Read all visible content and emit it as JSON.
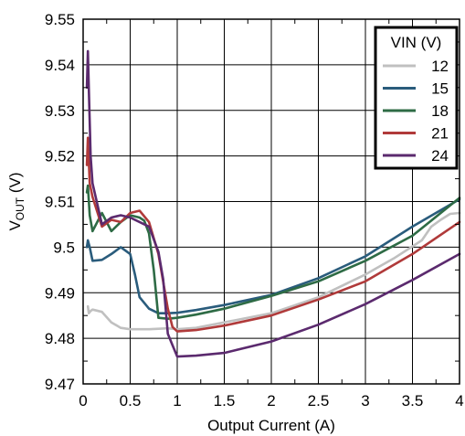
{
  "chart_data": {
    "type": "line",
    "xlabel": "Output Current (A)",
    "ylabel": {
      "main": "V",
      "sub": "OUT",
      "unit": " (V)"
    },
    "xlim": [
      0,
      4
    ],
    "ylim": [
      9.47,
      9.55
    ],
    "x_ticks": [
      0,
      0.5,
      1,
      1.5,
      2,
      2.5,
      3,
      3.5,
      4
    ],
    "x_tick_labels": [
      "0",
      "0.5",
      "1",
      "1.5",
      "2",
      "2.5",
      "3",
      "3.5",
      "4"
    ],
    "y_ticks": [
      9.47,
      9.48,
      9.49,
      9.5,
      9.51,
      9.52,
      9.53,
      9.54,
      9.55
    ],
    "y_tick_labels": [
      "9.47",
      "9.48",
      "9.49",
      "9.5",
      "9.51",
      "9.52",
      "9.53",
      "9.54",
      "9.55"
    ],
    "x_minor_ticks": [
      0.25,
      0.75,
      1.25,
      1.75,
      2.25,
      2.75,
      3.25,
      3.75
    ],
    "y_minor_ticks": [
      9.475,
      9.485,
      9.495,
      9.505,
      9.515,
      9.525,
      9.535,
      9.545
    ],
    "grid": true,
    "legend": {
      "title": "VIN (V)",
      "placement": "top-right"
    },
    "series": [
      {
        "name": "12",
        "color": "#c0c0c0",
        "points": [
          [
            0.05,
            9.487
          ],
          [
            0.06,
            9.4855
          ],
          [
            0.08,
            9.486
          ],
          [
            0.1,
            9.4863
          ],
          [
            0.2,
            9.4858
          ],
          [
            0.3,
            9.4835
          ],
          [
            0.4,
            9.4823
          ],
          [
            0.5,
            9.482
          ],
          [
            0.7,
            9.482
          ],
          [
            0.9,
            9.4822
          ],
          [
            1,
            9.482
          ],
          [
            1.2,
            9.4823
          ],
          [
            1.5,
            9.4835
          ],
          [
            2,
            9.4855
          ],
          [
            2.5,
            9.489
          ],
          [
            3,
            9.494
          ],
          [
            3.3,
            9.4975
          ],
          [
            3.6,
            9.5015
          ],
          [
            3.7,
            9.5045
          ],
          [
            3.8,
            9.506
          ],
          [
            3.9,
            9.5073
          ],
          [
            4,
            9.5075
          ]
        ]
      },
      {
        "name": "15",
        "color": "#2a5c7c",
        "points": [
          [
            0.04,
            9.5
          ],
          [
            0.05,
            9.5015
          ],
          [
            0.07,
            9.5
          ],
          [
            0.1,
            9.497
          ],
          [
            0.2,
            9.4972
          ],
          [
            0.3,
            9.4985
          ],
          [
            0.4,
            9.5
          ],
          [
            0.5,
            9.4985
          ],
          [
            0.55,
            9.494
          ],
          [
            0.6,
            9.489
          ],
          [
            0.7,
            9.4865
          ],
          [
            0.8,
            9.4855
          ],
          [
            0.9,
            9.4855
          ],
          [
            1,
            9.4856
          ],
          [
            1.2,
            9.4862
          ],
          [
            1.5,
            9.4873
          ],
          [
            2,
            9.4895
          ],
          [
            2.5,
            9.4932
          ],
          [
            3,
            9.498
          ],
          [
            3.5,
            9.5045
          ],
          [
            4,
            9.5105
          ]
        ]
      },
      {
        "name": "18",
        "color": "#2e6b45",
        "points": [
          [
            0.04,
            9.512
          ],
          [
            0.05,
            9.5135
          ],
          [
            0.07,
            9.507
          ],
          [
            0.1,
            9.5035
          ],
          [
            0.2,
            9.5075
          ],
          [
            0.3,
            9.5035
          ],
          [
            0.4,
            9.5055
          ],
          [
            0.5,
            9.507
          ],
          [
            0.6,
            9.5065
          ],
          [
            0.65,
            9.5058
          ],
          [
            0.7,
            9.503
          ],
          [
            0.75,
            9.495
          ],
          [
            0.8,
            9.4845
          ],
          [
            0.9,
            9.4843
          ],
          [
            1,
            9.4845
          ],
          [
            1.2,
            9.4852
          ],
          [
            1.5,
            9.4865
          ],
          [
            2,
            9.4893
          ],
          [
            2.5,
            9.4925
          ],
          [
            3,
            9.497
          ],
          [
            3.5,
            9.5025
          ],
          [
            4,
            9.5108
          ]
        ]
      },
      {
        "name": "21",
        "color": "#b03a3a",
        "points": [
          [
            0.04,
            9.518
          ],
          [
            0.05,
            9.524
          ],
          [
            0.07,
            9.514
          ],
          [
            0.1,
            9.511
          ],
          [
            0.2,
            9.5045
          ],
          [
            0.3,
            9.506
          ],
          [
            0.4,
            9.5055
          ],
          [
            0.5,
            9.5075
          ],
          [
            0.6,
            9.508
          ],
          [
            0.7,
            9.5055
          ],
          [
            0.8,
            9.4985
          ],
          [
            0.9,
            9.4865
          ],
          [
            0.95,
            9.4825
          ],
          [
            1,
            9.4815
          ],
          [
            1.2,
            9.4818
          ],
          [
            1.5,
            9.4828
          ],
          [
            2,
            9.485
          ],
          [
            2.5,
            9.4885
          ],
          [
            3,
            9.4925
          ],
          [
            3.5,
            9.4985
          ],
          [
            4,
            9.5055
          ]
        ]
      },
      {
        "name": "24",
        "color": "#5b2a6e",
        "points": [
          [
            0.04,
            9.535
          ],
          [
            0.05,
            9.543
          ],
          [
            0.06,
            9.535
          ],
          [
            0.08,
            9.52
          ],
          [
            0.1,
            9.514
          ],
          [
            0.2,
            9.505
          ],
          [
            0.3,
            9.5065
          ],
          [
            0.4,
            9.507
          ],
          [
            0.5,
            9.5065
          ],
          [
            0.6,
            9.5055
          ],
          [
            0.7,
            9.5045
          ],
          [
            0.8,
            9.499
          ],
          [
            0.85,
            9.493
          ],
          [
            0.9,
            9.481
          ],
          [
            0.95,
            9.4785
          ],
          [
            1,
            9.476
          ],
          [
            1.2,
            9.4762
          ],
          [
            1.5,
            9.4768
          ],
          [
            2,
            9.4793
          ],
          [
            2.5,
            9.483
          ],
          [
            3,
            9.4875
          ],
          [
            3.5,
            9.4928
          ],
          [
            4,
            9.4985
          ]
        ]
      }
    ]
  }
}
